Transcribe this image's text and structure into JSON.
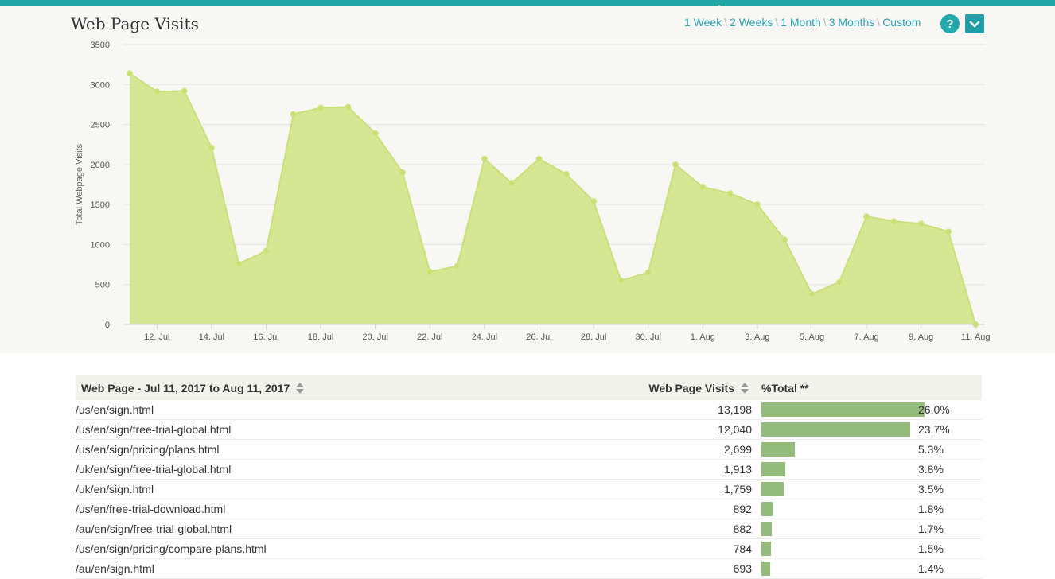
{
  "header": {
    "title": "Web Page Visits",
    "ranges": [
      "1 Week",
      "2 Weeks",
      "1 Month",
      "3 Months",
      "Custom"
    ],
    "help_label": "?"
  },
  "chart_data": {
    "type": "area",
    "ylabel": "Total Webpage Visits",
    "ylim": [
      0,
      3500
    ],
    "yticks": [
      0,
      500,
      1000,
      1500,
      2000,
      2500,
      3000,
      3500
    ],
    "xticks": [
      "12. Jul",
      "14. Jul",
      "16. Jul",
      "18. Jul",
      "20. Jul",
      "22. Jul",
      "24. Jul",
      "26. Jul",
      "28. Jul",
      "30. Jul",
      "1. Aug",
      "3. Aug",
      "5. Aug",
      "7. Aug",
      "9. Aug",
      "11. Aug"
    ],
    "x": [
      "Jul 11",
      "Jul 12",
      "Jul 13",
      "Jul 14",
      "Jul 15",
      "Jul 16",
      "Jul 17",
      "Jul 18",
      "Jul 19",
      "Jul 20",
      "Jul 21",
      "Jul 22",
      "Jul 23",
      "Jul 24",
      "Jul 25",
      "Jul 26",
      "Jul 27",
      "Jul 28",
      "Jul 29",
      "Jul 30",
      "Jul 31",
      "Aug 1",
      "Aug 2",
      "Aug 3",
      "Aug 4",
      "Aug 5",
      "Aug 6",
      "Aug 7",
      "Aug 8",
      "Aug 9",
      "Aug 10",
      "Aug 11"
    ],
    "values": [
      3140,
      2910,
      2920,
      2210,
      760,
      920,
      2630,
      2710,
      2720,
      2390,
      1900,
      660,
      730,
      2070,
      1770,
      2070,
      1880,
      1540,
      550,
      650,
      2000,
      1720,
      1640,
      1500,
      1060,
      380,
      530,
      1350,
      1290,
      1260,
      1160,
      0
    ],
    "grid": true,
    "area_color": "#d6e794",
    "line_color": "#c9e07a"
  },
  "table": {
    "headers": {
      "page": "Web Page - Jul 11, 2017 to Aug 11, 2017",
      "visits": "Web Page Visits",
      "pct": "%Total **"
    },
    "rows": [
      {
        "page": "/us/en/sign.html",
        "visits": "13,198",
        "pct": "26.0%",
        "frac": 0.26
      },
      {
        "page": "/us/en/sign/free-trial-global.html",
        "visits": "12,040",
        "pct": "23.7%",
        "frac": 0.237
      },
      {
        "page": "/us/en/sign/pricing/plans.html",
        "visits": "2,699",
        "pct": "5.3%",
        "frac": 0.053
      },
      {
        "page": "/uk/en/sign/free-trial-global.html",
        "visits": "1,913",
        "pct": "3.8%",
        "frac": 0.038
      },
      {
        "page": "/uk/en/sign.html",
        "visits": "1,759",
        "pct": "3.5%",
        "frac": 0.035
      },
      {
        "page": "/us/en/free-trial-download.html",
        "visits": "892",
        "pct": "1.8%",
        "frac": 0.018
      },
      {
        "page": "/au/en/sign/free-trial-global.html",
        "visits": "882",
        "pct": "1.7%",
        "frac": 0.017
      },
      {
        "page": "/us/en/sign/pricing/compare-plans.html",
        "visits": "784",
        "pct": "1.5%",
        "frac": 0.015
      },
      {
        "page": "/au/en/sign.html",
        "visits": "693",
        "pct": "1.4%",
        "frac": 0.014
      }
    ],
    "bar_color": "#93bb7b"
  }
}
